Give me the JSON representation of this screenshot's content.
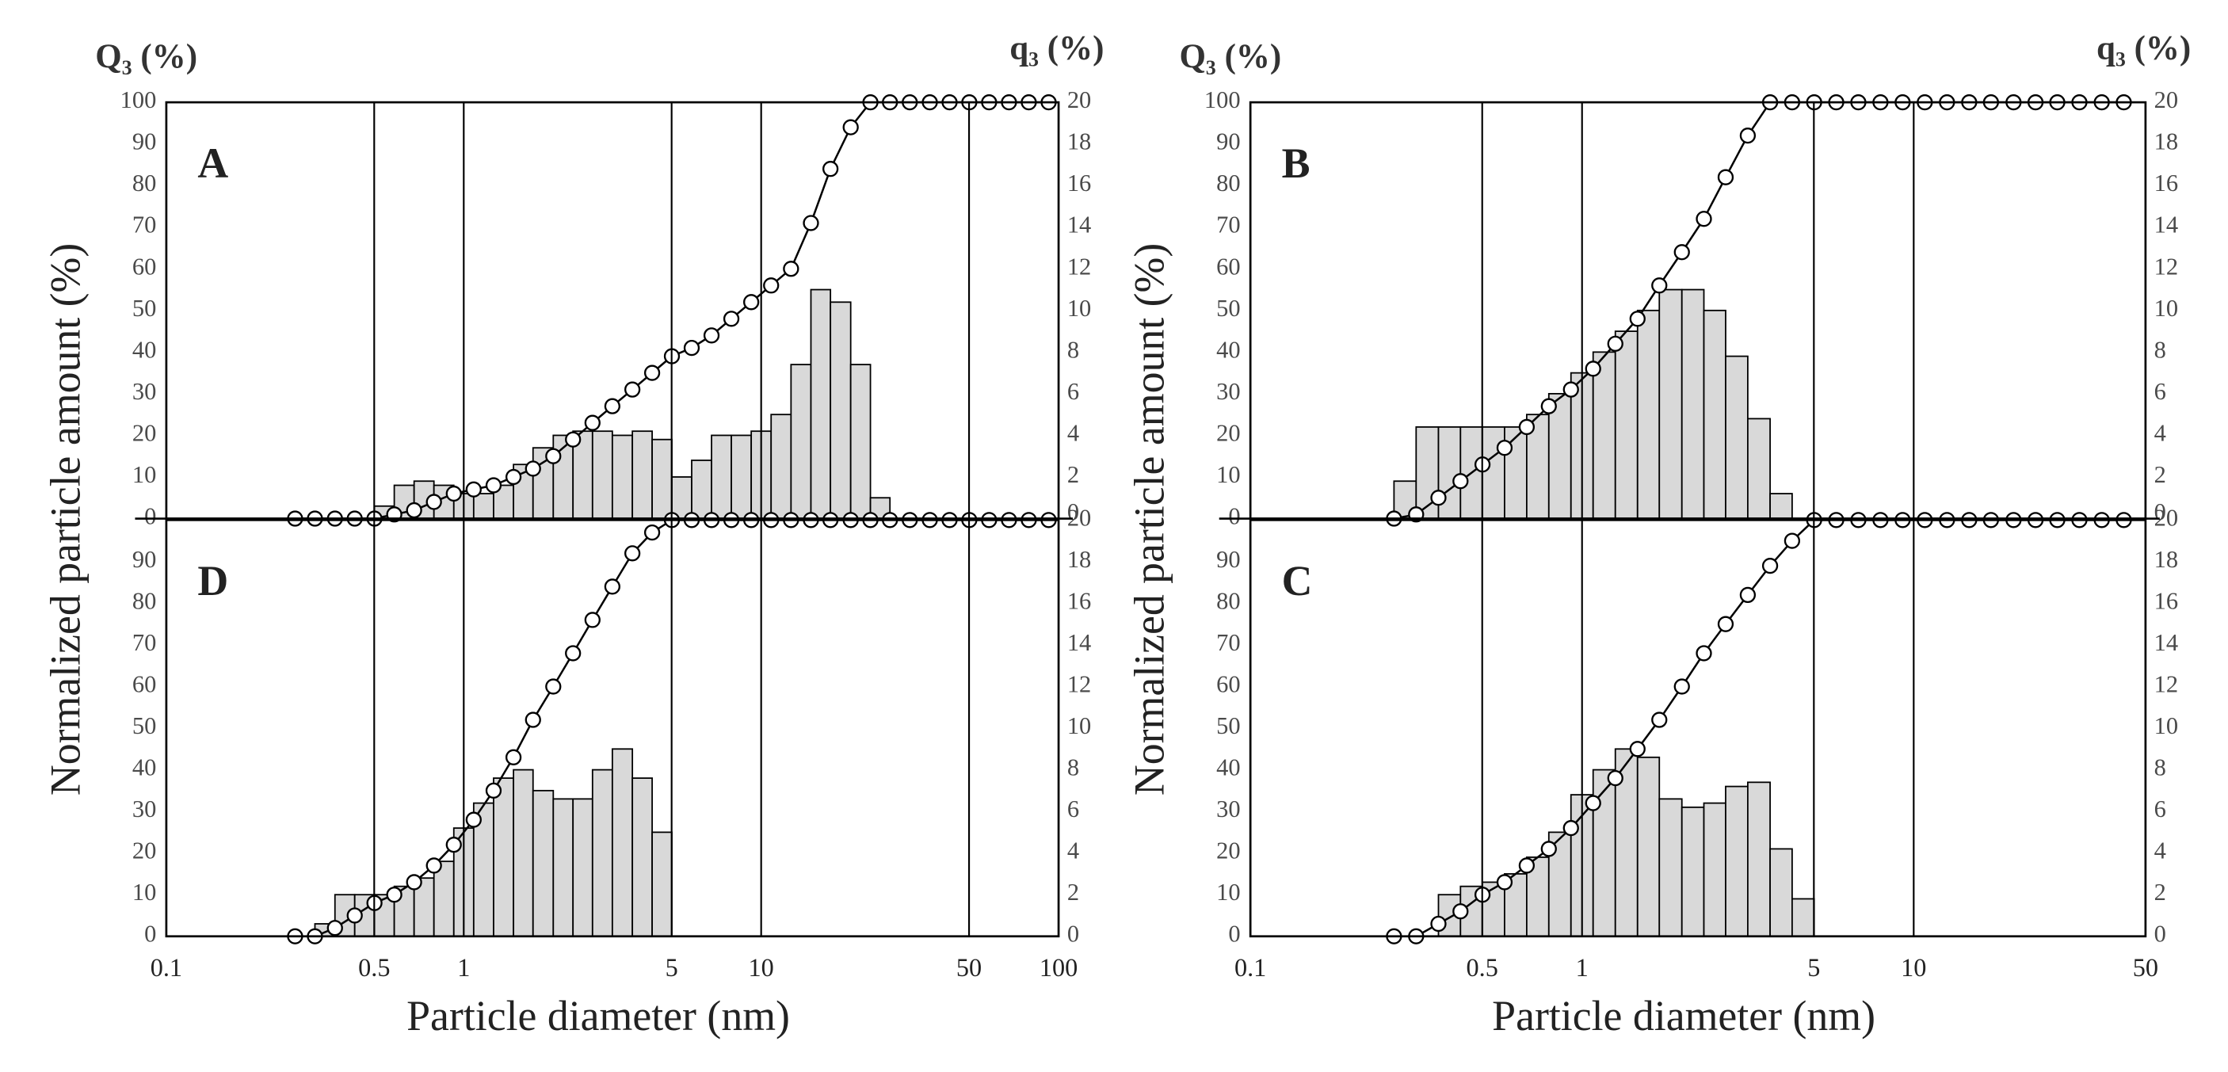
{
  "chart_data": [
    {
      "type": "histogram",
      "log_x": true,
      "xlim": [
        0.1,
        100
      ],
      "xticks": [
        0.1,
        0.5,
        1,
        5,
        10,
        50,
        100
      ],
      "grid": true,
      "xlabel": "Particle diameter (nm)",
      "ylabel": "Normalized particle amount (%)",
      "y_title": "Q₃ (%)",
      "y2_title": "q₃ (%)",
      "bar_color": "#d9d9d9",
      "line_color": "#000000",
      "panels": [
        {
          "label": "A",
          "ylim": [
            0,
            100
          ],
          "yticks": [
            0,
            10,
            20,
            30,
            40,
            50,
            60,
            70,
            80,
            90,
            100
          ],
          "y2lim": [
            0,
            20
          ],
          "y2ticks": [
            0,
            2,
            4,
            6,
            8,
            10,
            12,
            14,
            16,
            18,
            20
          ],
          "histogram": {
            "axis": "y2",
            "bins": [
              0.501,
              0.584,
              0.681,
              0.794,
              0.926,
              1.08,
              1.26,
              1.47,
              1.71,
              2.0,
              2.33,
              2.71,
              3.16,
              3.69,
              4.3,
              5.01,
              5.84,
              6.81,
              7.94,
              9.26,
              10.8,
              12.6,
              14.7,
              17.1,
              20.0,
              23.3,
              27.1
            ],
            "values": [
              0.6,
              1.6,
              1.8,
              1.6,
              1.2,
              1.2,
              1.6,
              2.6,
              3.4,
              4,
              4.2,
              4.2,
              4,
              4.2,
              3.8,
              2,
              2.8,
              4,
              4,
              4.2,
              5,
              7.4,
              11,
              10.4,
              7.4,
              1
            ]
          },
          "cumulative": {
            "x": [
              0.271,
              0.316,
              0.369,
              0.43,
              0.501,
              0.584,
              0.681,
              0.794,
              0.926,
              1.08,
              1.26,
              1.47,
              1.71,
              2.0,
              2.33,
              2.71,
              3.16,
              3.69,
              4.3,
              5.01,
              5.84,
              6.81,
              7.94,
              9.26,
              10.8,
              12.6,
              14.7,
              17.1,
              20.0,
              23.3,
              27.1,
              31.6,
              36.9,
              43.0,
              50.1,
              58.4,
              68.1,
              79.4,
              92.6
            ],
            "values": [
              0,
              0,
              0,
              0,
              0,
              1,
              2,
              4,
              6,
              7,
              8,
              10,
              12,
              15,
              19,
              23,
              27,
              31,
              35,
              39,
              41,
              44,
              48,
              52,
              56,
              60,
              71,
              84,
              94,
              100,
              100,
              100,
              100,
              100,
              100,
              100,
              100,
              100,
              100
            ]
          }
        },
        {
          "label": "D",
          "ylim": [
            0,
            100
          ],
          "yticks": [
            0,
            10,
            20,
            30,
            40,
            50,
            60,
            70,
            80,
            90
          ],
          "y2lim": [
            0,
            20
          ],
          "y2ticks": [
            0,
            2,
            4,
            6,
            8,
            10,
            12,
            14,
            16,
            18,
            20
          ],
          "histogram": {
            "axis": "y2",
            "bins": [
              0.316,
              0.369,
              0.43,
              0.501,
              0.584,
              0.681,
              0.794,
              0.926,
              1.08,
              1.26,
              1.47,
              1.71,
              2.0,
              2.33,
              2.71,
              3.16,
              3.69,
              4.3,
              5.01
            ],
            "values": [
              0.6,
              2,
              2,
              2,
              2.4,
              2.8,
              3.6,
              5.2,
              6.4,
              7.6,
              8,
              7,
              6.6,
              6.6,
              8,
              9,
              7.6,
              5
            ]
          },
          "cumulative": {
            "x": [
              0.271,
              0.316,
              0.369,
              0.43,
              0.501,
              0.584,
              0.681,
              0.794,
              0.926,
              1.08,
              1.26,
              1.47,
              1.71,
              2.0,
              2.33,
              2.71,
              3.16,
              3.69,
              4.3,
              5.01,
              5.84,
              6.81,
              7.94,
              9.26,
              10.8,
              12.6,
              14.7,
              17.1,
              20.0,
              23.3,
              27.1,
              31.6,
              36.9,
              43.0,
              50.1,
              58.4,
              68.1,
              79.4,
              92.6
            ],
            "values": [
              0,
              0,
              2,
              5,
              8,
              10,
              13,
              17,
              22,
              28,
              35,
              43,
              52,
              60,
              68,
              76,
              84,
              92,
              97,
              100,
              100,
              100,
              100,
              100,
              100,
              100,
              100,
              100,
              100,
              100,
              100,
              100,
              100,
              100,
              100,
              100,
              100,
              100,
              100
            ]
          }
        }
      ]
    },
    {
      "type": "histogram",
      "log_x": true,
      "xlim": [
        0.1,
        50
      ],
      "xticks": [
        0.1,
        0.5,
        1,
        5,
        10,
        50
      ],
      "grid": true,
      "xlabel": "Particle diameter (nm)",
      "ylabel": "Normalized particle amount (%)",
      "y_title": "Q₃ (%)",
      "y2_title": "q₃ (%)",
      "bar_color": "#d9d9d9",
      "line_color": "#000000",
      "panels": [
        {
          "label": "B",
          "ylim": [
            0,
            100
          ],
          "yticks": [
            0,
            10,
            20,
            30,
            40,
            50,
            60,
            70,
            80,
            90,
            100
          ],
          "y2lim": [
            0,
            20
          ],
          "y2ticks": [
            0,
            2,
            4,
            6,
            8,
            10,
            12,
            14,
            16,
            18,
            20
          ],
          "histogram": {
            "axis": "y2",
            "bins": [
              0.271,
              0.316,
              0.369,
              0.43,
              0.501,
              0.584,
              0.681,
              0.794,
              0.926,
              1.08,
              1.26,
              1.47,
              1.71,
              2.0,
              2.33,
              2.71,
              3.16,
              3.69,
              4.3
            ],
            "values": [
              1.8,
              4.4,
              4.4,
              4.4,
              4.4,
              4.4,
              5,
              6,
              7,
              8,
              9,
              10,
              11,
              11,
              10,
              7.8,
              4.8,
              1.2
            ]
          },
          "cumulative": {
            "x": [
              0.271,
              0.316,
              0.369,
              0.43,
              0.501,
              0.584,
              0.681,
              0.794,
              0.926,
              1.08,
              1.26,
              1.47,
              1.71,
              2.0,
              2.33,
              2.71,
              3.16,
              3.69,
              4.3,
              5.01,
              5.84,
              6.81,
              7.94,
              9.26,
              10.8,
              12.6,
              14.7,
              17.1,
              20.0,
              23.3,
              27.1,
              31.6,
              36.9,
              43.0
            ],
            "values": [
              0,
              1,
              5,
              9,
              13,
              17,
              22,
              27,
              31,
              36,
              42,
              48,
              56,
              64,
              72,
              82,
              92,
              100,
              100,
              100,
              100,
              100,
              100,
              100,
              100,
              100,
              100,
              100,
              100,
              100,
              100,
              100,
              100,
              100
            ]
          }
        },
        {
          "label": "C",
          "ylim": [
            0,
            100
          ],
          "yticks": [
            0,
            10,
            20,
            30,
            40,
            50,
            60,
            70,
            80,
            90
          ],
          "y2lim": [
            0,
            20
          ],
          "y2ticks": [
            0,
            2,
            4,
            6,
            8,
            10,
            12,
            14,
            16,
            18,
            20
          ],
          "histogram": {
            "axis": "y2",
            "bins": [
              0.369,
              0.43,
              0.501,
              0.584,
              0.681,
              0.794,
              0.926,
              1.08,
              1.26,
              1.47,
              1.71,
              2.0,
              2.33,
              2.71,
              3.16,
              3.69,
              4.3,
              5.01
            ],
            "values": [
              2,
              2.4,
              2.6,
              3,
              3.8,
              5,
              6.8,
              8,
              9,
              8.6,
              6.6,
              6.2,
              6.4,
              7.2,
              7.4,
              4.2,
              1.8
            ]
          },
          "cumulative": {
            "x": [
              0.271,
              0.316,
              0.369,
              0.43,
              0.501,
              0.584,
              0.681,
              0.794,
              0.926,
              1.08,
              1.26,
              1.47,
              1.71,
              2.0,
              2.33,
              2.71,
              3.16,
              3.69,
              4.3,
              5.01,
              5.84,
              6.81,
              7.94,
              9.26,
              10.8,
              12.6,
              14.7,
              17.1,
              20.0,
              23.3,
              27.1,
              31.6,
              36.9,
              43.0
            ],
            "values": [
              0,
              0,
              3,
              6,
              10,
              13,
              17,
              21,
              26,
              32,
              38,
              45,
              52,
              60,
              68,
              75,
              82,
              89,
              95,
              100,
              100,
              100,
              100,
              100,
              100,
              100,
              100,
              100,
              100,
              100,
              100,
              100,
              100,
              100
            ]
          }
        }
      ]
    }
  ]
}
